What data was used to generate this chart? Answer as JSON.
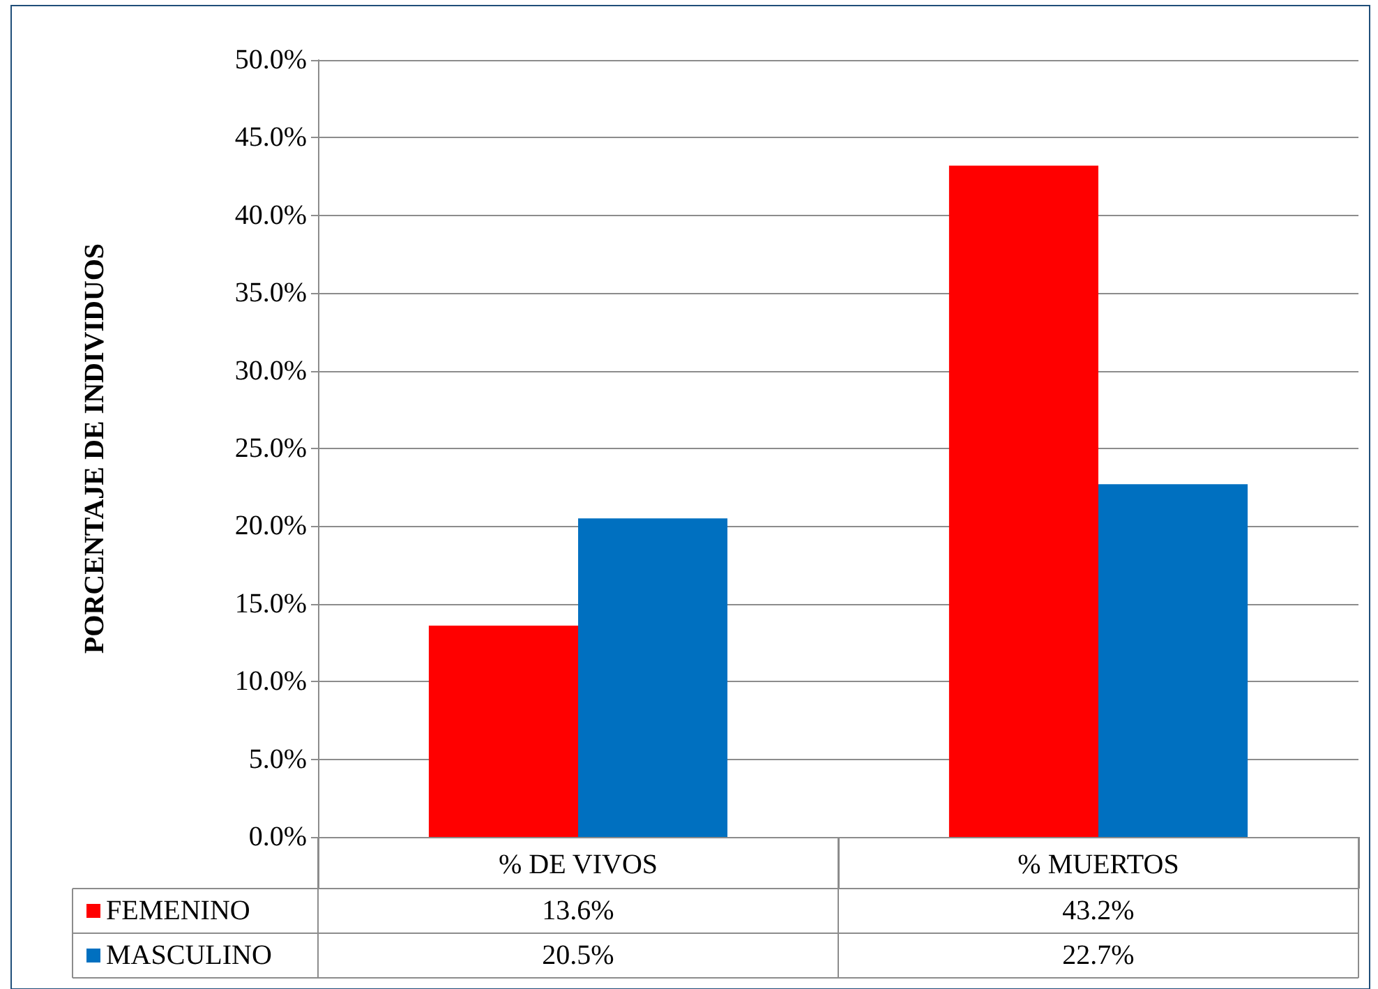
{
  "chart_data": {
    "type": "bar",
    "ylabel": "PORCENTAJE DE INDIVIDUOS",
    "categories": [
      "% DE VIVOS",
      "% MUERTOS"
    ],
    "series": [
      {
        "name": "FEMENINO",
        "color": "#ff0000",
        "values": [
          13.6,
          43.2
        ],
        "value_labels": [
          "13.6%",
          "43.2%"
        ]
      },
      {
        "name": "MASCULINO",
        "color": "#0070c0",
        "values": [
          20.5,
          22.7
        ],
        "value_labels": [
          "20.5%",
          "22.7%"
        ]
      }
    ],
    "ylim": [
      0,
      50
    ],
    "yticks": [
      {
        "value": 0,
        "label": "0.0%"
      },
      {
        "value": 5,
        "label": "5.0%"
      },
      {
        "value": 10,
        "label": "10.0%"
      },
      {
        "value": 15,
        "label": "15.0%"
      },
      {
        "value": 20,
        "label": "20.0%"
      },
      {
        "value": 25,
        "label": "25.0%"
      },
      {
        "value": 30,
        "label": "30.0%"
      },
      {
        "value": 35,
        "label": "35.0%"
      },
      {
        "value": 40,
        "label": "40.0%"
      },
      {
        "value": 45,
        "label": "45.0%"
      },
      {
        "value": 50,
        "label": "50.0%"
      }
    ],
    "grid": "y",
    "legend": "bottom"
  }
}
